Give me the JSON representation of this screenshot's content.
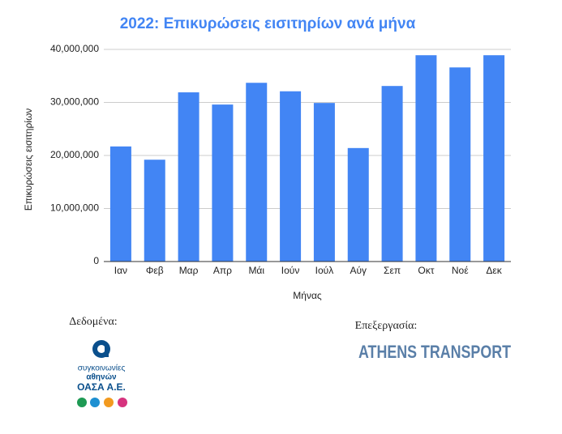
{
  "chart_data": {
    "type": "bar",
    "title": "2022: Επικυρώσεις εισιτηρίων ανά μήνα",
    "x_label": "Μήνας",
    "y_label": "Επικυρώσεις εισιτηρίων",
    "categories": [
      "Ιαν",
      "Φεβ",
      "Μαρ",
      "Απρ",
      "Μάι",
      "Ιούν",
      "Ιούλ",
      "Αύγ",
      "Σεπ",
      "Οκτ",
      "Νοέ",
      "Δεκ"
    ],
    "values": [
      21700000,
      19200000,
      31900000,
      29600000,
      33700000,
      32100000,
      29900000,
      21400000,
      33100000,
      38900000,
      36600000,
      38900000
    ],
    "color": "#4285f4",
    "ylim": [
      0,
      40000000
    ],
    "yticks": [
      0,
      {
        "value": 10000000,
        "label": "10,000,000"
      },
      {
        "value": 20000000,
        "label": "20,000,000"
      },
      {
        "value": 30000000,
        "label": "30,000,000"
      },
      {
        "value": 40000000,
        "label": "40,000,000"
      }
    ],
    "grid": true
  },
  "credits": {
    "data_source_label": "Δεδομένα:",
    "processing_label": "Επεξεργασία:",
    "oasa_logo_line1": "συγκοινωνίες",
    "oasa_logo_line2": "αθηνών",
    "oasa_logo_line3": "ΟΑΣΑ Α.Ε.",
    "processor_logo": "ATHENS TRANSPORT"
  }
}
